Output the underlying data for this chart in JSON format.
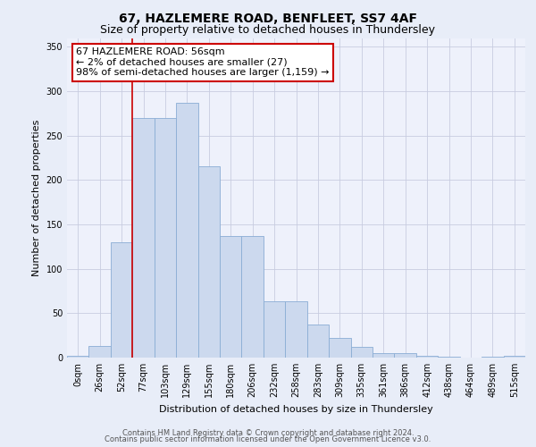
{
  "title1": "67, HAZLEMERE ROAD, BENFLEET, SS7 4AF",
  "title2": "Size of property relative to detached houses in Thundersley",
  "xlabel": "Distribution of detached houses by size in Thundersley",
  "ylabel": "Number of detached properties",
  "bar_labels": [
    "0sqm",
    "26sqm",
    "52sqm",
    "77sqm",
    "103sqm",
    "129sqm",
    "155sqm",
    "180sqm",
    "206sqm",
    "232sqm",
    "258sqm",
    "283sqm",
    "309sqm",
    "335sqm",
    "361sqm",
    "386sqm",
    "412sqm",
    "438sqm",
    "464sqm",
    "489sqm",
    "515sqm"
  ],
  "bar_heights": [
    2,
    13,
    130,
    270,
    270,
    287,
    215,
    137,
    137,
    63,
    63,
    37,
    22,
    12,
    5,
    5,
    2,
    1,
    0,
    1,
    2
  ],
  "bar_color": "#ccd9ee",
  "bar_edge_color": "#8aadd4",
  "ylim": [
    0,
    360
  ],
  "yticks": [
    0,
    50,
    100,
    150,
    200,
    250,
    300,
    350
  ],
  "red_line_x": 2.5,
  "annotation_line1": "67 HAZLEMERE ROAD: 56sqm",
  "annotation_line2": "← 2% of detached houses are smaller (27)",
  "annotation_line3": "98% of semi-detached houses are larger (1,159) →",
  "footer1": "Contains HM Land Registry data © Crown copyright and database right 2024.",
  "footer2": "Contains public sector information licensed under the Open Government Licence v3.0.",
  "bg_color": "#e8edf8",
  "plot_bg_color": "#eef1fb",
  "grid_color": "#c8cce0",
  "title1_fontsize": 10,
  "title2_fontsize": 9,
  "ylabel_fontsize": 8,
  "xlabel_fontsize": 8,
  "tick_fontsize": 7,
  "footer_fontsize": 6,
  "annotation_fontsize": 8
}
